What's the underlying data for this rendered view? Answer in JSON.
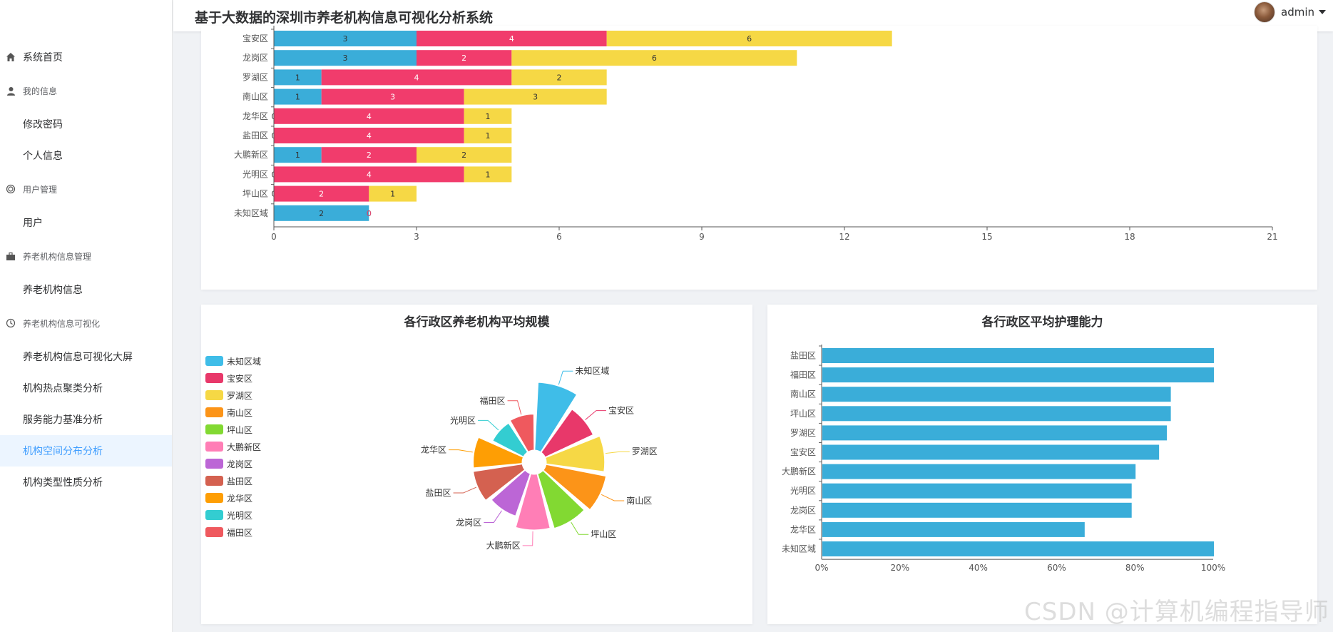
{
  "header": {
    "title": "基于大数据的深圳市养老机构信息可视化分析系统",
    "username": "admin"
  },
  "sidebar": {
    "items": [
      {
        "type": "item",
        "label": "系统首页",
        "icon": "home-icon"
      },
      {
        "type": "group",
        "label": "我的信息",
        "icon": "user-icon"
      },
      {
        "type": "item",
        "label": "修改密码"
      },
      {
        "type": "item",
        "label": "个人信息"
      },
      {
        "type": "group",
        "label": "用户管理",
        "icon": "users-icon"
      },
      {
        "type": "item",
        "label": "用户"
      },
      {
        "type": "group",
        "label": "养老机构信息管理",
        "icon": "briefcase-icon"
      },
      {
        "type": "item",
        "label": "养老机构信息"
      },
      {
        "type": "group",
        "label": "养老机构信息可视化",
        "icon": "clock-icon"
      },
      {
        "type": "item",
        "label": "养老机构信息可视化大屏"
      },
      {
        "type": "item",
        "label": "机构热点聚类分析"
      },
      {
        "type": "item",
        "label": "服务能力基准分析"
      },
      {
        "type": "item",
        "label": "机构空间分布分析",
        "active": true
      },
      {
        "type": "item",
        "label": "机构类型性质分析"
      }
    ]
  },
  "watermark": "CSDN @计算机编程指导师",
  "colors": {
    "blue": "#3aadd9",
    "pink": "#f13c6c",
    "yellow": "#f6d845",
    "active_bg": "#ecf5ff",
    "active_text": "#409eff"
  },
  "chart_data": [
    {
      "type": "bar",
      "orientation": "horizontal",
      "stacked": true,
      "categories": [
        "宝安区",
        "龙岗区",
        "罗湖区",
        "南山区",
        "龙华区",
        "盐田区",
        "大鹏新区",
        "光明区",
        "坪山区",
        "未知区域"
      ],
      "series": [
        {
          "values": [
            3,
            3,
            1,
            1,
            0,
            0,
            1,
            0,
            0,
            2
          ],
          "color": "#3aadd9"
        },
        {
          "values": [
            4,
            2,
            4,
            3,
            4,
            4,
            2,
            4,
            2,
            0
          ],
          "color": "#f13c6c"
        },
        {
          "values": [
            6,
            6,
            2,
            3,
            1,
            1,
            2,
            1,
            1,
            0
          ],
          "color": "#f6d845"
        }
      ],
      "x_ticks": [
        "0",
        "3",
        "6",
        "9",
        "12",
        "15",
        "18",
        "21"
      ],
      "xlim": [
        0,
        21
      ],
      "grid": false
    },
    {
      "type": "pie",
      "subtype": "rose",
      "title": "各行政区养老机构平均规模",
      "legend_position": "left",
      "slices": [
        {
          "label": "未知区域",
          "value": 100,
          "color": "#3fbde8"
        },
        {
          "label": "宝安区",
          "value": 78,
          "color": "#e8386a"
        },
        {
          "label": "罗湖区",
          "value": 86,
          "color": "#f6d845"
        },
        {
          "label": "南山区",
          "value": 90,
          "color": "#fc9418"
        },
        {
          "label": "坪山区",
          "value": 84,
          "color": "#82d932"
        },
        {
          "label": "大鹏新区",
          "value": 82,
          "color": "#ff7eb6"
        },
        {
          "label": "龙岗区",
          "value": 66,
          "color": "#bc66d6"
        },
        {
          "label": "盐田区",
          "value": 73,
          "color": "#d46150"
        },
        {
          "label": "龙华区",
          "value": 72,
          "color": "#fe9e04"
        },
        {
          "label": "光明区",
          "value": 51,
          "color": "#33cdd1"
        },
        {
          "label": "福田区",
          "value": 53,
          "color": "#ef595e"
        }
      ]
    },
    {
      "type": "bar",
      "orientation": "horizontal",
      "title": "各行政区平均护理能力",
      "categories": [
        "盐田区",
        "福田区",
        "南山区",
        "坪山区",
        "罗湖区",
        "宝安区",
        "大鹏新区",
        "光明区",
        "龙岗区",
        "龙华区",
        "未知区域"
      ],
      "values": [
        100,
        100,
        89,
        89,
        88,
        86,
        80,
        79,
        79,
        67,
        100
      ],
      "x_ticks": [
        "0%",
        "20%",
        "40%",
        "60%",
        "80%",
        "100%"
      ],
      "xlim": [
        0,
        100
      ],
      "color": "#3aadd9",
      "grid": false
    }
  ]
}
